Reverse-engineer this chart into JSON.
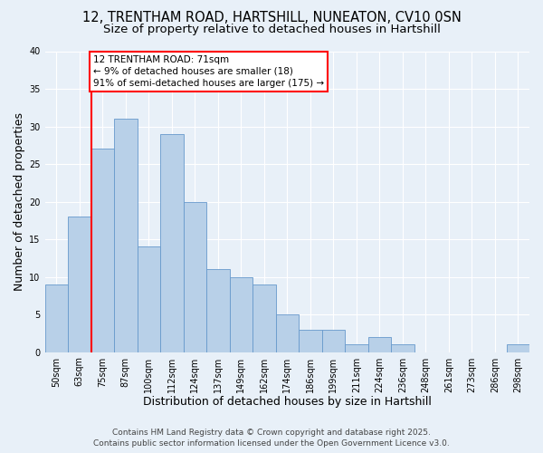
{
  "title1": "12, TRENTHAM ROAD, HARTSHILL, NUNEATON, CV10 0SN",
  "title2": "Size of property relative to detached houses in Hartshill",
  "xlabel": "Distribution of detached houses by size in Hartshill",
  "ylabel": "Number of detached properties",
  "footnote1": "Contains HM Land Registry data © Crown copyright and database right 2025.",
  "footnote2": "Contains public sector information licensed under the Open Government Licence v3.0.",
  "categories": [
    "50sqm",
    "63sqm",
    "75sqm",
    "87sqm",
    "100sqm",
    "112sqm",
    "124sqm",
    "137sqm",
    "149sqm",
    "162sqm",
    "174sqm",
    "186sqm",
    "199sqm",
    "211sqm",
    "224sqm",
    "236sqm",
    "248sqm",
    "261sqm",
    "273sqm",
    "286sqm",
    "298sqm"
  ],
  "values": [
    9,
    18,
    27,
    31,
    14,
    29,
    20,
    11,
    10,
    9,
    5,
    3,
    3,
    1,
    2,
    1,
    0,
    0,
    0,
    0,
    1
  ],
  "bar_color": "#b8d0e8",
  "bar_edge_color": "#6699cc",
  "background_color": "#e8f0f8",
  "grid_color": "#ffffff",
  "annotation_line1": "12 TRENTHAM ROAD: 71sqm",
  "annotation_line2": "← 9% of detached houses are smaller (18)",
  "annotation_line3": "91% of semi-detached houses are larger (175) →",
  "vline_x": 1.5,
  "ylim": [
    0,
    40
  ],
  "yticks": [
    0,
    5,
    10,
    15,
    20,
    25,
    30,
    35,
    40
  ],
  "title_fontsize": 10.5,
  "subtitle_fontsize": 9.5,
  "axis_label_fontsize": 9,
  "tick_fontsize": 7,
  "annotation_fontsize": 7.5,
  "footnote_fontsize": 6.5
}
